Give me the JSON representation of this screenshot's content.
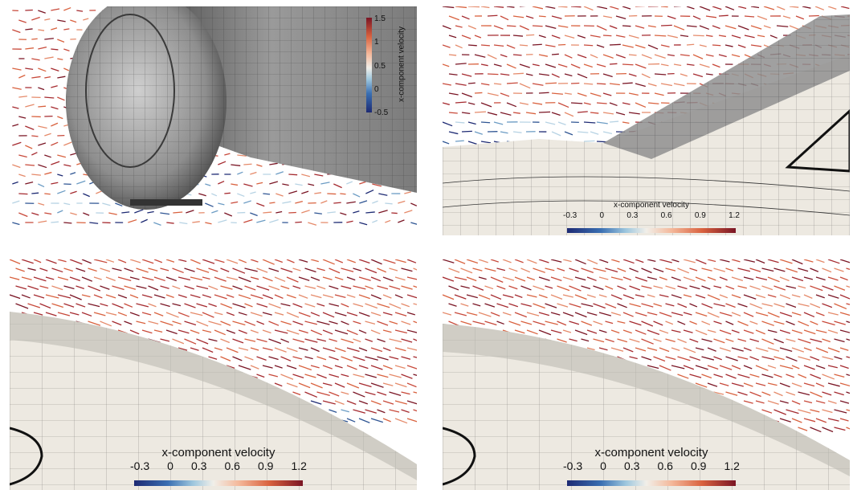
{
  "panels": [
    {
      "id": "wheel-view",
      "colorbar": {
        "orientation": "vertical",
        "title": "x-component velocity",
        "ticks": [
          "1.5",
          "1",
          "0.5",
          "0",
          "-0.5"
        ]
      }
    },
    {
      "id": "wing-junction-view",
      "colorbar": {
        "orientation": "horizontal",
        "title": "x-component velocity",
        "ticks": [
          "-0.3",
          "0",
          "0.3",
          "0.6",
          "0.9",
          "1.2"
        ]
      }
    },
    {
      "id": "leading-edge-view-a",
      "colorbar": {
        "orientation": "horizontal",
        "title": "x-component velocity",
        "ticks": [
          "-0.3",
          "0",
          "0.3",
          "0.6",
          "0.9",
          "1.2"
        ]
      }
    },
    {
      "id": "leading-edge-view-b",
      "colorbar": {
        "orientation": "horizontal",
        "title": "x-component velocity",
        "ticks": [
          "-0.3",
          "0",
          "0.3",
          "0.6",
          "0.9",
          "1.2"
        ]
      }
    }
  ],
  "colors": {
    "low": "#1d2a73",
    "mid": "#f1efe9",
    "high": "#7a1524",
    "surface": "#ede9e1",
    "grid": "#2a2a2a"
  }
}
